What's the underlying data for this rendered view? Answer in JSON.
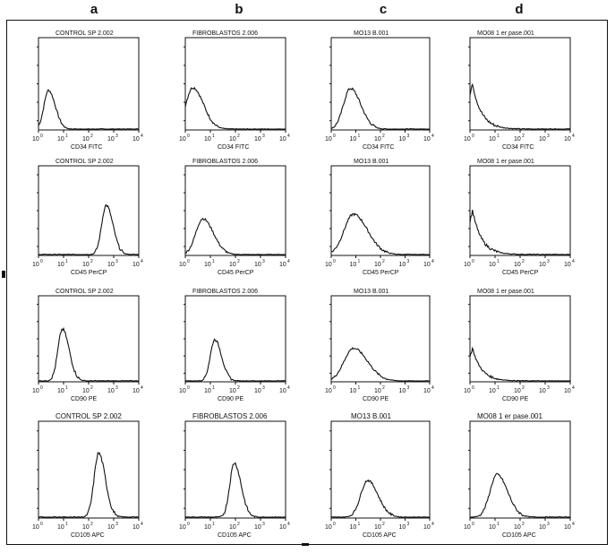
{
  "columns": [
    "a",
    "b",
    "c",
    "d"
  ],
  "chart_data": [
    {
      "type": "area",
      "title": "CONTROL SP 2.002",
      "xlabel": "CD34 FITC",
      "x_scale": "log",
      "xlim": [
        1,
        10000
      ],
      "peak_at": 2.5,
      "peak_height": 0.42,
      "profile": "lognormal-narrow-low"
    },
    {
      "type": "area",
      "title": "FIBROBLASTOS 2.006",
      "xlabel": "CD34 FITC",
      "x_scale": "log",
      "xlim": [
        1,
        10000
      ],
      "peak_at": 2.0,
      "peak_height": 0.45,
      "profile": "lognormal-skewed-left"
    },
    {
      "type": "area",
      "title": "MO13 B.001",
      "xlabel": "CD34 FITC",
      "x_scale": "log",
      "xlim": [
        1,
        10000
      ],
      "peak_at": 6.0,
      "peak_height": 0.44,
      "profile": "lognormal"
    },
    {
      "type": "area",
      "title": "MO08 1 er pase.001",
      "xlabel": "CD34 FITC",
      "x_scale": "log",
      "xlim": [
        1,
        10000
      ],
      "peak_at": 1.3,
      "peak_height": 0.52,
      "profile": "decaying-from-edge"
    },
    {
      "type": "area",
      "title": "CONTROL SP 2.002",
      "xlabel": "CD45 PerCP",
      "x_scale": "log",
      "xlim": [
        1,
        10000
      ],
      "peak_at": 500,
      "peak_height": 0.55,
      "profile": "lognormal-narrow"
    },
    {
      "type": "area",
      "title": "FIBROBLASTOS 2.006",
      "xlabel": "CD45 PerCP",
      "x_scale": "log",
      "xlim": [
        1,
        10000
      ],
      "peak_at": 5.0,
      "peak_height": 0.4,
      "profile": "lognormal"
    },
    {
      "type": "area",
      "title": "MO13 B.001",
      "xlabel": "CD45 PerCP",
      "x_scale": "log",
      "xlim": [
        1,
        10000
      ],
      "peak_at": 8.0,
      "peak_height": 0.45,
      "profile": "lognormal-broad"
    },
    {
      "type": "area",
      "title": "MO08 1 er pase.001",
      "xlabel": "CD45 PerCP",
      "x_scale": "log",
      "xlim": [
        1,
        10000
      ],
      "peak_at": 1.5,
      "peak_height": 0.52,
      "profile": "decaying-from-edge"
    },
    {
      "type": "area",
      "title": "CONTROL SP 2.002",
      "xlabel": "CD90 PE",
      "x_scale": "log",
      "xlim": [
        1,
        10000
      ],
      "peak_at": 9.0,
      "peak_height": 0.6,
      "profile": "lognormal-narrow"
    },
    {
      "type": "area",
      "title": "FIBROBLASTOS 2.006",
      "xlabel": "CD90 PE",
      "x_scale": "log",
      "xlim": [
        1,
        10000
      ],
      "peak_at": 15,
      "peak_height": 0.48,
      "profile": "lognormal-narrow"
    },
    {
      "type": "area",
      "title": "MO13 B.001",
      "xlabel": "CD90 PE",
      "x_scale": "log",
      "xlim": [
        1,
        10000
      ],
      "peak_at": 8.0,
      "peak_height": 0.38,
      "profile": "lognormal-broad"
    },
    {
      "type": "area",
      "title": "MO08 1 er pase.001",
      "xlabel": "CD90 PE",
      "x_scale": "log",
      "xlim": [
        1,
        10000
      ],
      "peak_at": 2.0,
      "peak_height": 0.4,
      "profile": "decaying-from-edge"
    },
    {
      "type": "area",
      "title": "CONTROL SP 2.002",
      "xlabel": "CD105 APC",
      "x_scale": "log",
      "xlim": [
        1,
        10000
      ],
      "peak_at": 250,
      "peak_height": 0.66,
      "profile": "lognormal-narrow"
    },
    {
      "type": "area",
      "title": "FIBROBLASTOS 2.006",
      "xlabel": "CD105 APC",
      "x_scale": "log",
      "xlim": [
        1,
        10000
      ],
      "peak_at": 90,
      "peak_height": 0.56,
      "profile": "lognormal-narrow"
    },
    {
      "type": "area",
      "title": "MO13 B.001",
      "xlabel": "CD105 APC",
      "x_scale": "log",
      "xlim": [
        1,
        10000
      ],
      "peak_at": 30,
      "peak_height": 0.38,
      "profile": "lognormal"
    },
    {
      "type": "area",
      "title": "MO08 1 er pase.001",
      "xlabel": "CD105 APC",
      "x_scale": "log",
      "xlim": [
        1,
        10000
      ],
      "peak_at": 12,
      "peak_height": 0.44,
      "profile": "lognormal"
    }
  ],
  "tick_labels": [
    "10",
    "10",
    "10",
    "10",
    "10"
  ],
  "tick_exponents": [
    "0",
    "1",
    "2",
    "3",
    "4"
  ]
}
